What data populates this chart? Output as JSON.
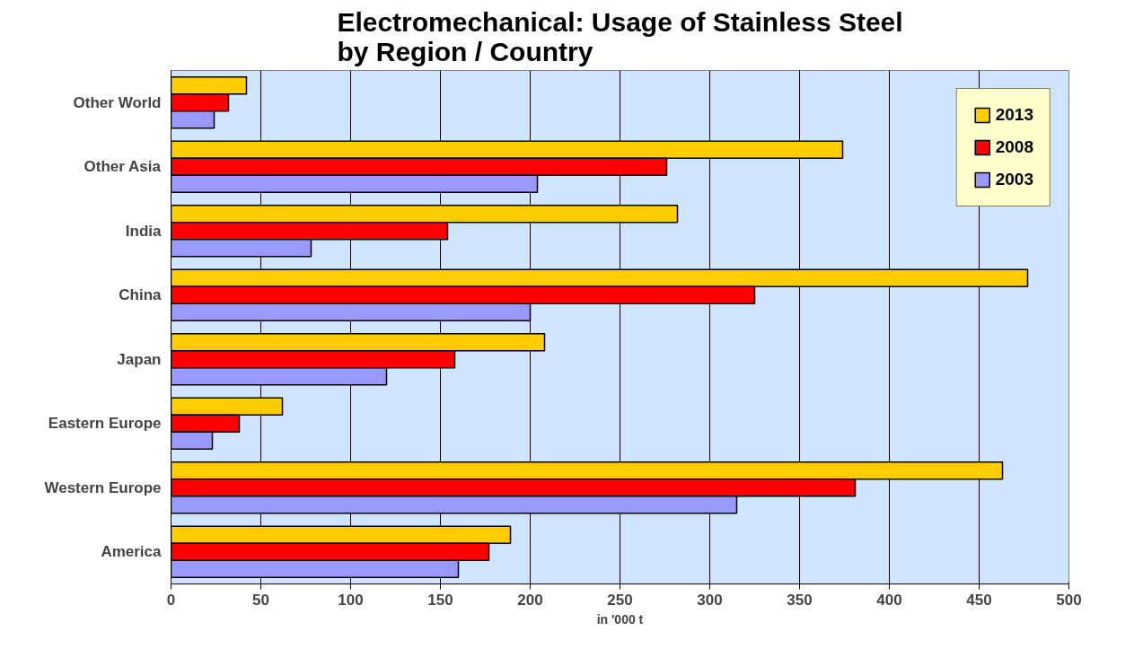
{
  "chart_data": {
    "type": "bar",
    "orientation": "horizontal",
    "title": "Electromechanical: Usage of Stainless Steel\nby Region / Country",
    "xlabel": "in '000 t",
    "categories": [
      "Other World",
      "Other Asia",
      "India",
      "China",
      "Japan",
      "Eastern Europe",
      "Western Europe",
      "America"
    ],
    "series": [
      {
        "name": "2013",
        "color": "#ffcc00",
        "values": [
          42,
          374,
          282,
          477,
          208,
          62,
          463,
          189
        ]
      },
      {
        "name": "2008",
        "color": "#ff0000",
        "values": [
          32,
          276,
          154,
          325,
          158,
          38,
          381,
          177
        ]
      },
      {
        "name": "2003",
        "color": "#9999ff",
        "values": [
          24,
          204,
          78,
          200,
          120,
          23,
          315,
          160
        ]
      }
    ],
    "xlim": [
      0,
      500
    ],
    "xticks": [
      0,
      50,
      100,
      150,
      200,
      250,
      300,
      350,
      400,
      450,
      500
    ],
    "grid": "x",
    "legend": "top right"
  }
}
